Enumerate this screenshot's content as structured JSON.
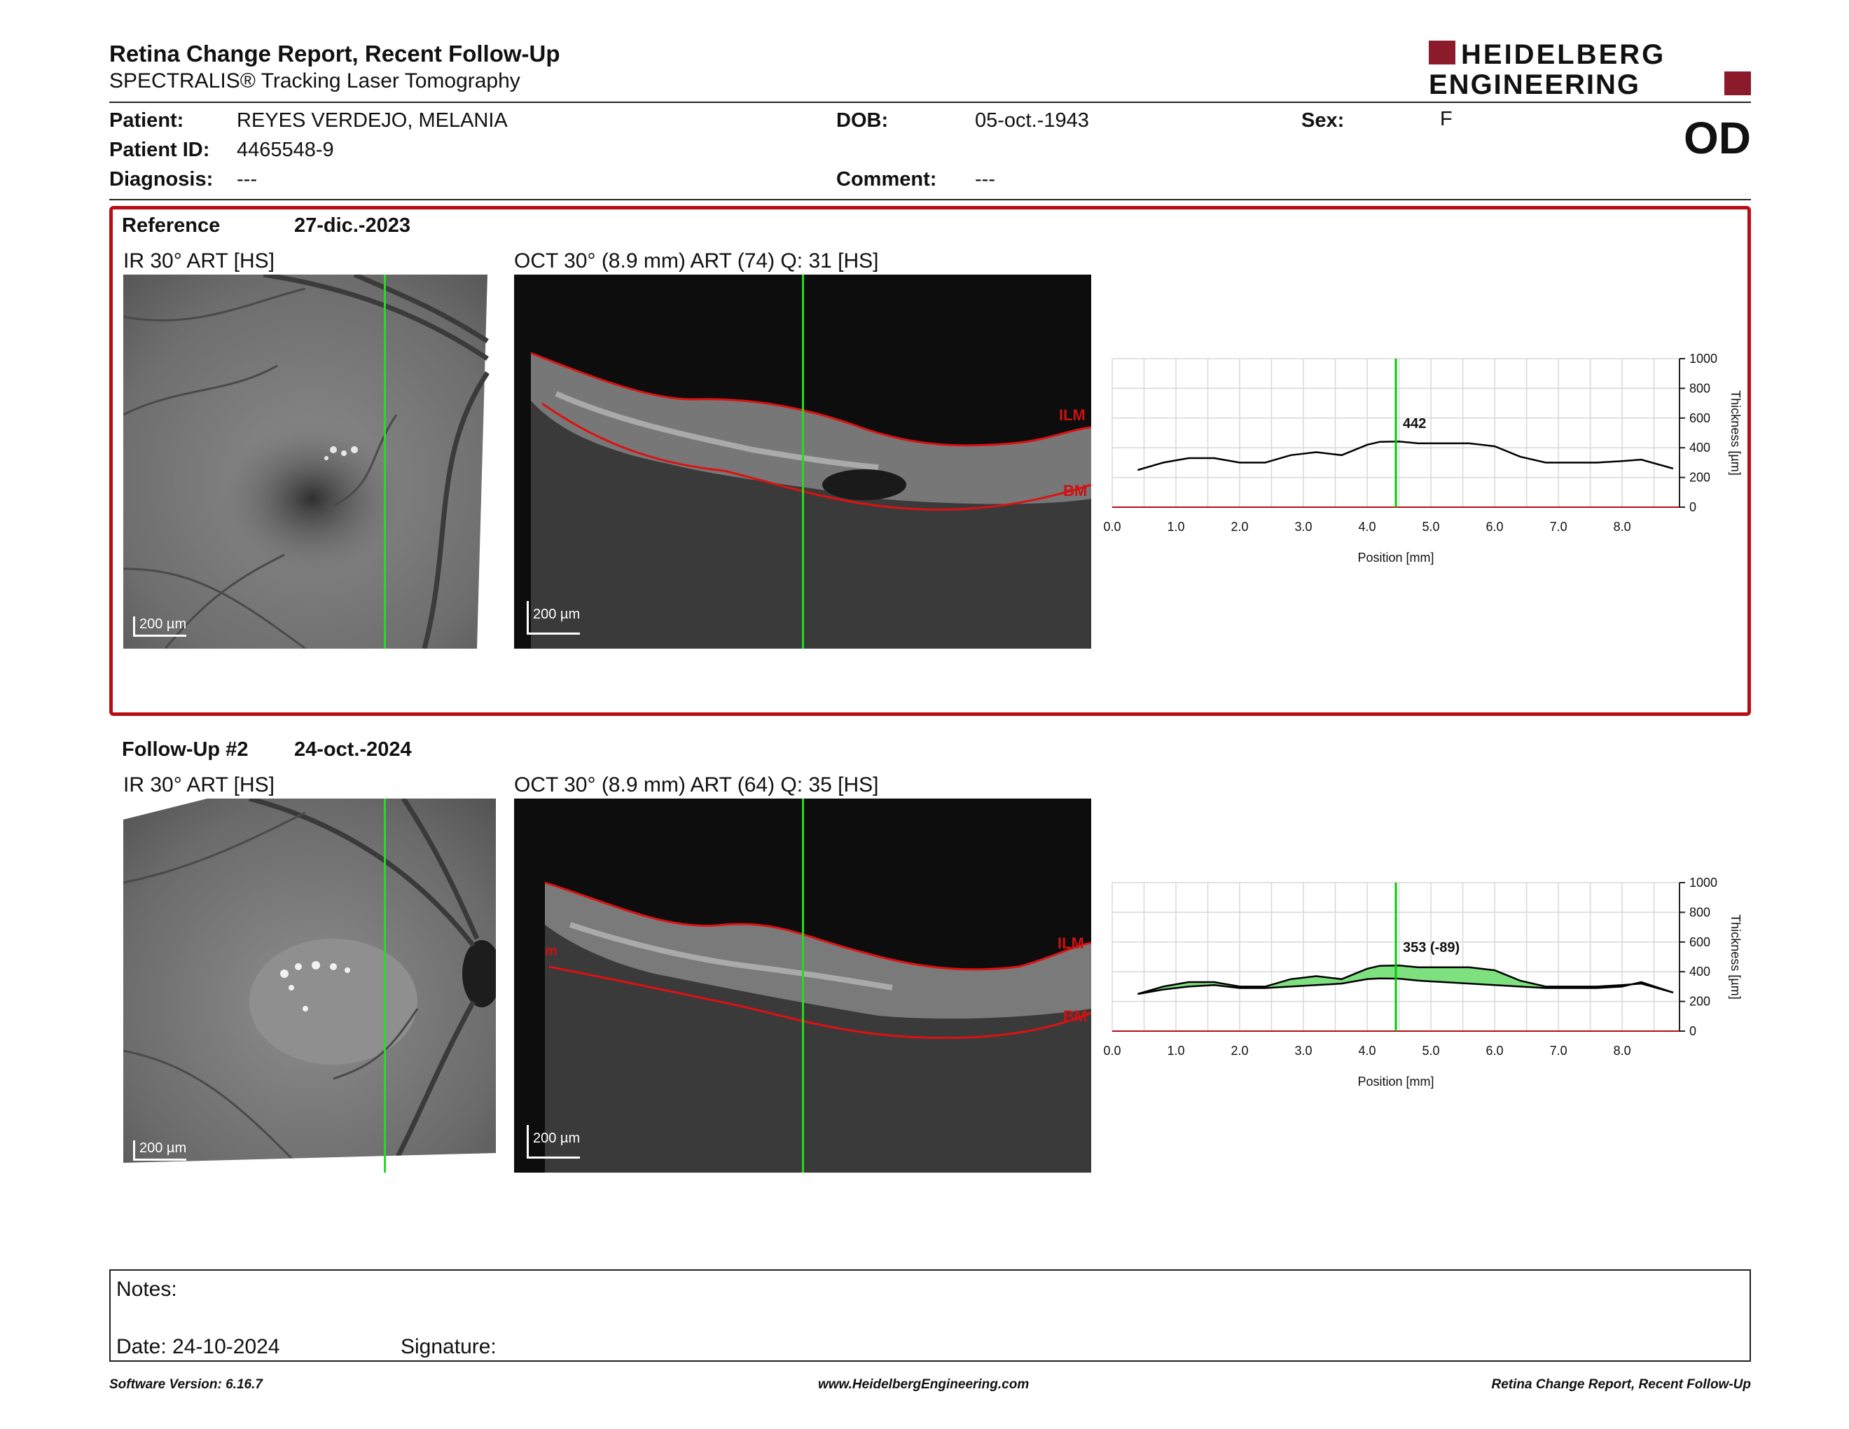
{
  "header": {
    "title": "Retina Change Report, Recent Follow-Up",
    "subtitle": "SPECTRALIS® Tracking Laser Tomography",
    "brand_line1": "HEIDELBERG",
    "brand_line2": "ENGINEERING",
    "brand_color": "#8b1a2b",
    "eye": "OD"
  },
  "patient": {
    "name_label": "Patient:",
    "name": "REYES VERDEJO, MELANIA",
    "id_label": "Patient ID:",
    "id": "4465548-9",
    "diagnosis_label": "Diagnosis:",
    "diagnosis": "---",
    "dob_label": "DOB:",
    "dob": "05-oct.-1943",
    "comment_label": "Comment:",
    "comment": "---",
    "sex_label": "Sex:",
    "sex": "F"
  },
  "reference": {
    "label": "Reference",
    "date": "27-dic.-2023",
    "ir_label": "IR 30° ART [HS]",
    "oct_label": "OCT 30° (8.9 mm) ART (74) Q: 31 [HS]",
    "scale_text": "200 µm",
    "ilm_label": "ILM",
    "bm_label": "BM"
  },
  "followup": {
    "label": "Follow-Up #2",
    "date": "24-oct.-2024",
    "ir_label": "IR 30° ART [HS]",
    "oct_label": "OCT 30° (8.9 mm) ART (64) Q: 35 [HS]",
    "scale_text": "200 µm",
    "ilm_label": "ILM",
    "bm_label": "BM",
    "extra_label": "m"
  },
  "chart_data": [
    {
      "type": "line",
      "x": [
        0.4,
        0.8,
        1.2,
        1.6,
        2.0,
        2.4,
        2.8,
        3.2,
        3.6,
        4.0,
        4.2,
        4.5,
        4.8,
        5.2,
        5.6,
        6.0,
        6.4,
        6.8,
        7.2,
        7.6,
        8.0,
        8.3,
        8.8
      ],
      "series": [
        {
          "values": [
            250,
            300,
            330,
            330,
            300,
            300,
            350,
            370,
            350,
            420,
            440,
            442,
            430,
            430,
            430,
            410,
            340,
            300,
            300,
            300,
            310,
            320,
            260
          ]
        }
      ],
      "cursor_x": 4.45,
      "cursor_label": "442",
      "xlabel": "Position [mm]",
      "ylabel": "Thickness [µm]",
      "xticks": [
        "0.0",
        "1.0",
        "2.0",
        "3.0",
        "4.0",
        "5.0",
        "6.0",
        "7.0",
        "8.0"
      ],
      "yticks": [
        "0",
        "200",
        "400",
        "600",
        "800",
        "1000"
      ],
      "xlim": [
        0,
        8.9
      ],
      "ylim": [
        0,
        1000
      ],
      "grid": true,
      "line_color": "#000000",
      "cursor_color": "#00cc00"
    },
    {
      "type": "area",
      "x": [
        0.4,
        0.8,
        1.2,
        1.6,
        2.0,
        2.4,
        2.8,
        3.2,
        3.6,
        4.0,
        4.2,
        4.5,
        4.8,
        5.2,
        5.6,
        6.0,
        6.4,
        6.8,
        7.2,
        7.6,
        8.0,
        8.3,
        8.8
      ],
      "series": [
        {
          "values": [
            250,
            280,
            300,
            310,
            290,
            290,
            300,
            310,
            320,
            350,
            355,
            353,
            340,
            330,
            320,
            310,
            300,
            290,
            290,
            290,
            300,
            330,
            260
          ]
        },
        {
          "values": [
            250,
            300,
            330,
            330,
            300,
            300,
            350,
            370,
            350,
            420,
            440,
            442,
            430,
            430,
            430,
            410,
            340,
            300,
            300,
            300,
            310,
            320,
            260
          ]
        }
      ],
      "cursor_x": 4.45,
      "cursor_label": "353 (-89)",
      "xlabel": "Position [mm]",
      "ylabel": "Thickness [µm]",
      "xticks": [
        "0.0",
        "1.0",
        "2.0",
        "3.0",
        "4.0",
        "5.0",
        "6.0",
        "7.0",
        "8.0"
      ],
      "yticks": [
        "0",
        "200",
        "400",
        "600",
        "800",
        "1000"
      ],
      "xlim": [
        0,
        8.9
      ],
      "ylim": [
        0,
        1000
      ],
      "grid": true,
      "fill_color": "#7fe07f",
      "line_color": "#000000",
      "cursor_color": "#00cc00"
    }
  ],
  "notes": {
    "notes_label": "Notes:",
    "date_label": "Date: 24-10-2024",
    "signature_label": "Signature:"
  },
  "footer": {
    "software": "Software Version: 6.16.7",
    "website": "www.HeidelbergEngineering.com",
    "report_name": "Retina Change Report, Recent Follow-Up"
  }
}
